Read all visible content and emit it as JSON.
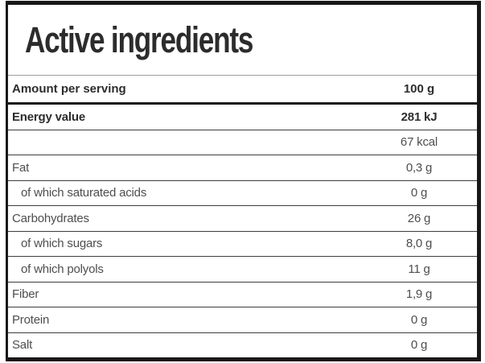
{
  "title": "Active ingredients",
  "colors": {
    "frame_border": "#171717",
    "thick_divider": "#181818",
    "row_divider": "#3d3d3d",
    "light_divider": "#9e9e9e",
    "bold_text": "#2d2d2d",
    "regular_text": "#4e4e4e",
    "background": "#ffffff"
  },
  "table": {
    "header": {
      "label": "Amount per serving",
      "value": "100 g"
    },
    "rows": [
      {
        "label": "Energy value",
        "value": "281 kJ",
        "bold": true,
        "indent": false
      },
      {
        "label": "",
        "value": "67 kcal",
        "bold": false,
        "indent": false
      },
      {
        "label": "Fat",
        "value": "0,3 g",
        "bold": false,
        "indent": false
      },
      {
        "label": "of which saturated acids",
        "value": "0 g",
        "bold": false,
        "indent": true
      },
      {
        "label": "Carbohydrates",
        "value": "26 g",
        "bold": false,
        "indent": false
      },
      {
        "label": "of which sugars",
        "value": "8,0 g",
        "bold": false,
        "indent": true
      },
      {
        "label": "of which polyols",
        "value": "11 g",
        "bold": false,
        "indent": true
      },
      {
        "label": "Fiber",
        "value": "1,9 g",
        "bold": false,
        "indent": false
      },
      {
        "label": "Protein",
        "value": "0 g",
        "bold": false,
        "indent": false
      },
      {
        "label": "Salt",
        "value": "0 g",
        "bold": false,
        "indent": false
      }
    ]
  }
}
